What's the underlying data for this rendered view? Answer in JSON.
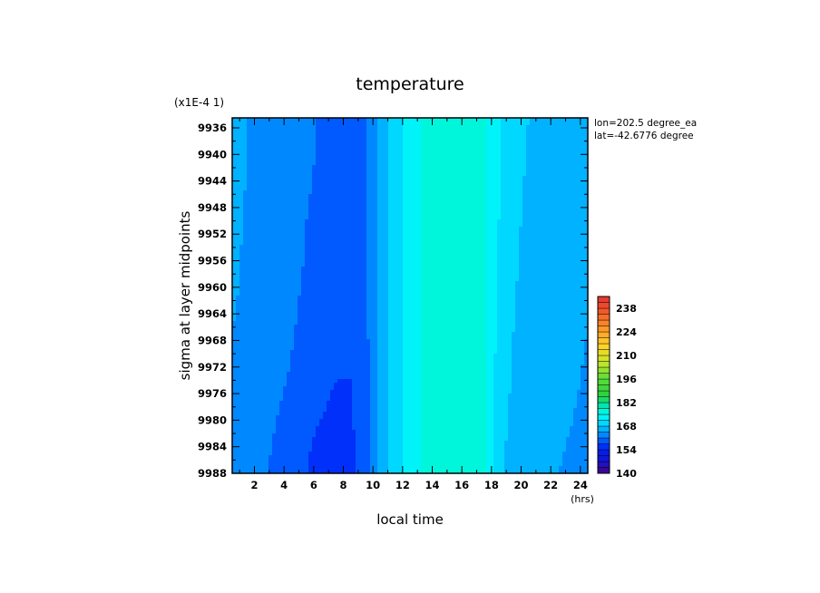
{
  "chart_data": {
    "type": "heatmap",
    "title": "temperature",
    "xlabel": "local time",
    "x_unit": "(hrs)",
    "ylabel": "sigma at layer midpoints",
    "y_scale_note": "(x1E-4 1)",
    "annotations": [
      "lon=202.5 degree_ea",
      "lat=-42.6776 degree"
    ],
    "x_ticks": [
      2,
      4,
      6,
      8,
      10,
      12,
      14,
      16,
      18,
      20,
      22,
      24
    ],
    "x_tick_labels": [
      "2",
      "4",
      "6",
      "8",
      "10",
      "12",
      "14",
      "16",
      "18",
      "20",
      "22",
      "24"
    ],
    "y_ticks": [
      9936,
      9940,
      9944,
      9948,
      9952,
      9956,
      9960,
      9964,
      9968,
      9972,
      9976,
      9980,
      9984,
      9988
    ],
    "y_tick_labels": [
      "9936",
      "9940",
      "9944",
      "9948",
      "9952",
      "9956",
      "9960",
      "9964",
      "9968",
      "9972",
      "9976",
      "9980",
      "9984",
      "9988"
    ],
    "xlim": [
      0.5,
      24.5
    ],
    "ylim": [
      9934.5,
      9988
    ],
    "y_inverted": true,
    "colorbar": {
      "ticks": [
        140,
        154,
        168,
        182,
        196,
        210,
        224,
        238
      ],
      "tick_labels": [
        "140",
        "154",
        "168",
        "182",
        "196",
        "210",
        "224",
        "238"
      ],
      "min": 140,
      "max": 245,
      "step": 3.5
    },
    "grid_x": [
      0.5,
      1.5,
      2.5,
      3.5,
      4.5,
      5.5,
      6.5,
      7.5,
      8.5,
      9.5,
      10.5,
      11.5,
      12.5,
      13.5,
      14.5,
      15.5,
      16.5,
      17.5,
      18.5,
      19.5,
      20.5,
      21.5,
      22.5,
      23.5,
      24.5
    ],
    "grid_y": [
      9934.5,
      9942,
      9950,
      9958,
      9966,
      9974,
      9980,
      9984,
      9988
    ],
    "values": [
      [
        166.5,
        164.5,
        163.5,
        163.0,
        162.5,
        162.0,
        160.5,
        159.8,
        159.5,
        160.0,
        166.0,
        170.0,
        173.5,
        175.5,
        175.6,
        175.6,
        175.5,
        175.4,
        172.0,
        170.0,
        168.0,
        166.8,
        166.0,
        165.8,
        165.5
      ],
      [
        166.0,
        164.5,
        163.5,
        163.0,
        162.5,
        161.5,
        160.5,
        159.5,
        159.2,
        160.0,
        166.0,
        170.0,
        173.5,
        175.5,
        175.6,
        175.6,
        175.5,
        175.4,
        171.5,
        169.5,
        167.5,
        166.5,
        166.0,
        165.5,
        165.0
      ],
      [
        165.5,
        164.0,
        163.5,
        163.0,
        162.5,
        161.0,
        160.0,
        159.0,
        159.0,
        160.0,
        166.0,
        170.0,
        173.5,
        175.5,
        175.6,
        175.6,
        175.5,
        175.4,
        171.5,
        169.0,
        167.0,
        166.0,
        165.5,
        165.5,
        165.0
      ],
      [
        165.0,
        164.0,
        163.5,
        163.0,
        162.5,
        160.5,
        159.5,
        158.5,
        158.5,
        160.0,
        166.0,
        170.0,
        173.5,
        175.5,
        175.6,
        175.6,
        175.5,
        175.4,
        171.0,
        168.5,
        166.5,
        166.0,
        165.5,
        165.5,
        165.0
      ],
      [
        164.5,
        164.0,
        163.5,
        163.0,
        161.5,
        159.5,
        158.5,
        158.0,
        158.0,
        160.0,
        166.0,
        170.0,
        173.5,
        175.5,
        175.6,
        175.6,
        175.5,
        175.4,
        170.5,
        168.0,
        166.5,
        165.8,
        165.5,
        165.5,
        164.5
      ],
      [
        164.0,
        163.5,
        163.0,
        162.0,
        160.5,
        158.5,
        158.0,
        157.5,
        157.5,
        159.5,
        166.0,
        170.0,
        173.5,
        175.5,
        175.6,
        175.6,
        175.5,
        175.4,
        170.0,
        167.5,
        166.0,
        165.5,
        165.3,
        165.0,
        164.0
      ],
      [
        163.5,
        163.0,
        162.5,
        161.0,
        159.5,
        158.0,
        157.5,
        157.0,
        157.2,
        159.0,
        166.0,
        170.0,
        173.5,
        175.5,
        175.6,
        175.6,
        175.5,
        175.4,
        169.5,
        167.0,
        165.8,
        165.3,
        165.0,
        164.5,
        163.5
      ],
      [
        163.2,
        162.8,
        162.0,
        160.5,
        159.5,
        157.8,
        157.0,
        156.5,
        157.0,
        159.0,
        166.0,
        170.0,
        173.5,
        175.5,
        175.6,
        175.6,
        175.5,
        175.4,
        169.0,
        166.8,
        165.5,
        165.0,
        164.8,
        164.2,
        163.2
      ],
      [
        163.0,
        162.5,
        161.5,
        160.0,
        159.0,
        157.5,
        156.5,
        155.8,
        156.5,
        159.0,
        166.0,
        170.0,
        173.5,
        175.5,
        175.6,
        175.6,
        175.5,
        175.4,
        168.5,
        166.5,
        165.3,
        164.8,
        164.5,
        164.0,
        163.0
      ]
    ]
  }
}
